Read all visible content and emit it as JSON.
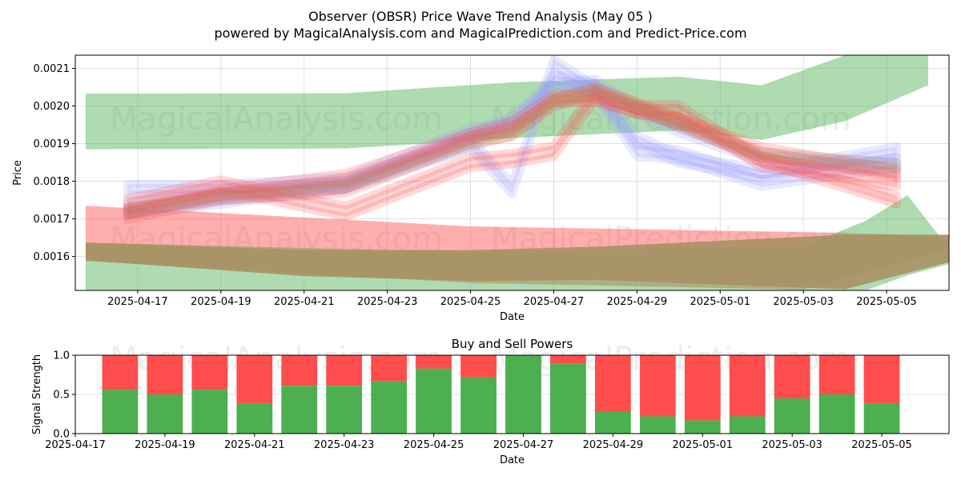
{
  "title": "Observer (OBSR) Price Wave Trend Analysis (May 05 )",
  "subtitle": "powered by MagicalAnalysis.com and MagicalPrediction.com and Predict-Price.com",
  "watermarks": [
    "MagicalAnalysis.com",
    "MagicalPrediction.com"
  ],
  "colors": {
    "green": "#4caf50",
    "red": "#ff4c4c",
    "blue": "#9999ff",
    "brown": "#a89165",
    "grid": "#d9d9d9"
  },
  "chart_data": [
    {
      "type": "area",
      "title": "",
      "xlabel": "Date",
      "ylabel": "Price",
      "xlim": [
        "2025-04-15T12:00",
        "2025-05-06T12:00"
      ],
      "ylim": [
        0.00151,
        0.002135
      ],
      "xticks": [
        "2025-04-17",
        "2025-04-19",
        "2025-04-21",
        "2025-04-23",
        "2025-04-25",
        "2025-04-27",
        "2025-04-29",
        "2025-05-01",
        "2025-05-03",
        "2025-05-05"
      ],
      "yticks": [
        "0.0016",
        "0.0017",
        "0.0018",
        "0.0019",
        "0.0020",
        "0.0021"
      ],
      "grid": true,
      "bands": [
        {
          "color": "green",
          "opacity": 0.45,
          "x": [
            "2025-04-15T18:00",
            "2025-04-22T00:00",
            "2025-04-26T00:00",
            "2025-04-30T00:00",
            "2025-05-02T00:00",
            "2025-05-04T00:00",
            "2025-05-06T00:00"
          ],
          "upper": [
            0.002033,
            0.002034,
            0.002063,
            0.002078,
            0.002055,
            0.002135,
            0.002135
          ],
          "lower": [
            0.001885,
            0.001887,
            0.001915,
            0.001935,
            0.00191,
            0.00196,
            0.002055
          ]
        },
        {
          "color": "red",
          "opacity": 0.45,
          "x": [
            "2025-04-15T18:00",
            "2025-04-25T00:00",
            "2025-05-03T00:00",
            "2025-05-06T12:00"
          ],
          "upper": [
            0.001735,
            0.00168,
            0.001665,
            0.001655
          ],
          "lower": [
            0.001588,
            0.00153,
            0.001512,
            0.00162
          ]
        },
        {
          "color": "green",
          "opacity": 0.45,
          "x": [
            "2025-04-15T18:00",
            "2025-04-25T00:00",
            "2025-05-03T00:00",
            "2025-05-04T12:00",
            "2025-05-05T12:00",
            "2025-05-06T12:00"
          ],
          "upper": [
            0.001637,
            0.001612,
            0.001628,
            0.001695,
            0.001763,
            0.001622
          ],
          "lower": [
            0.00151,
            0.00151,
            0.00151,
            0.00151,
            0.00155,
            0.00158
          ]
        },
        {
          "color": "brown",
          "opacity": 0.9,
          "x": [
            "2025-04-15T18:00",
            "2025-04-21T00:00",
            "2025-04-25T00:00",
            "2025-04-28T00:00",
            "2025-05-04T00:00",
            "2025-05-06T12:00"
          ],
          "upper": [
            0.001637,
            0.001618,
            0.001617,
            0.001626,
            0.001658,
            0.001658
          ],
          "lower": [
            0.00159,
            0.001548,
            0.001535,
            0.001538,
            0.001513,
            0.001585
          ]
        }
      ],
      "wave_x": [
        "2025-04-16T18:00",
        "2025-04-19T00:00",
        "2025-04-22T00:00",
        "2025-04-25T00:00",
        "2025-04-26T00:00",
        "2025-04-27T00:00",
        "2025-04-28T00:00",
        "2025-04-29T00:00",
        "2025-04-30T00:00",
        "2025-05-02T00:00",
        "2025-05-05T06:00"
      ],
      "waves": [
        {
          "color": "blue",
          "y": [
            0.00172,
            0.00175,
            0.00179,
            0.00192,
            0.00196,
            0.00205,
            0.00206,
            0.00199,
            0.00194,
            0.00186,
            0.00184
          ],
          "halfwidth": 1.2e-05
        },
        {
          "color": "blue",
          "y": [
            0.00173,
            0.00176,
            0.00179,
            0.0019,
            0.00178,
            0.00211,
            0.00204,
            0.00188,
            0.00187,
            0.0018,
            0.00185
          ],
          "halfwidth": 1.5e-05
        },
        {
          "color": "blue",
          "y": [
            0.00178,
            0.00178,
            0.0018,
            0.00193,
            0.00195,
            0.00207,
            0.00205,
            0.00191,
            0.00186,
            0.00182,
            0.00188
          ],
          "halfwidth": 1.3e-05
        },
        {
          "color": "red",
          "y": [
            0.00171,
            0.00176,
            0.00178,
            0.00191,
            0.00193,
            0.00201,
            0.00204,
            0.002,
            0.00196,
            0.00188,
            0.00182
          ],
          "halfwidth": 1.3e-05
        },
        {
          "color": "red",
          "y": [
            0.00174,
            0.00179,
            0.00172,
            0.00185,
            0.00186,
            0.00188,
            0.00203,
            0.00199,
            0.00199,
            0.00185,
            0.0018
          ],
          "halfwidth": 1.5e-05
        },
        {
          "color": "red",
          "y": [
            0.00172,
            0.00177,
            0.00181,
            0.00192,
            0.00195,
            0.00202,
            0.00202,
            0.00199,
            0.00196,
            0.00186,
            0.00175
          ],
          "halfwidth": 1.2e-05
        },
        {
          "color": "brown",
          "y": [
            0.00172,
            0.00176,
            0.00179,
            0.0019,
            0.00193,
            0.00201,
            0.00204,
            0.002,
            0.00195,
            0.00187,
            0.00184
          ],
          "halfwidth": 1e-05
        }
      ]
    },
    {
      "type": "bar",
      "title": "Buy and Sell Powers",
      "xlabel": "Date",
      "ylabel": "Signal Strength",
      "xlim": [
        "2025-04-17T00:00",
        "2025-05-06T12:00"
      ],
      "ylim": [
        0,
        1
      ],
      "xticks": [
        "2025-04-17",
        "2025-04-19",
        "2025-04-21",
        "2025-04-23",
        "2025-04-25",
        "2025-04-27",
        "2025-04-29",
        "2025-05-01",
        "2025-05-03",
        "2025-05-05"
      ],
      "yticks": [
        "0.0",
        "0.5",
        "1.0"
      ],
      "categories": [
        "2025-04-18",
        "2025-04-19",
        "2025-04-20",
        "2025-04-21",
        "2025-04-22",
        "2025-04-23",
        "2025-04-24",
        "2025-04-25",
        "2025-04-26",
        "2025-04-27",
        "2025-04-28",
        "2025-04-29",
        "2025-04-30",
        "2025-05-01",
        "2025-05-02",
        "2025-05-03",
        "2025-05-04",
        "2025-05-05"
      ],
      "series": [
        {
          "color": "green",
          "values": [
            0.56,
            0.5,
            0.56,
            0.39,
            0.61,
            0.61,
            0.67,
            0.83,
            0.72,
            1.0,
            0.89,
            0.28,
            0.22,
            0.17,
            0.22,
            0.45,
            0.5,
            0.39
          ]
        },
        {
          "color": "red",
          "values": [
            0.44,
            0.5,
            0.44,
            0.61,
            0.39,
            0.39,
            0.33,
            0.17,
            0.28,
            0.0,
            0.11,
            0.72,
            0.78,
            0.83,
            0.78,
            0.55,
            0.5,
            0.61
          ]
        }
      ]
    }
  ]
}
